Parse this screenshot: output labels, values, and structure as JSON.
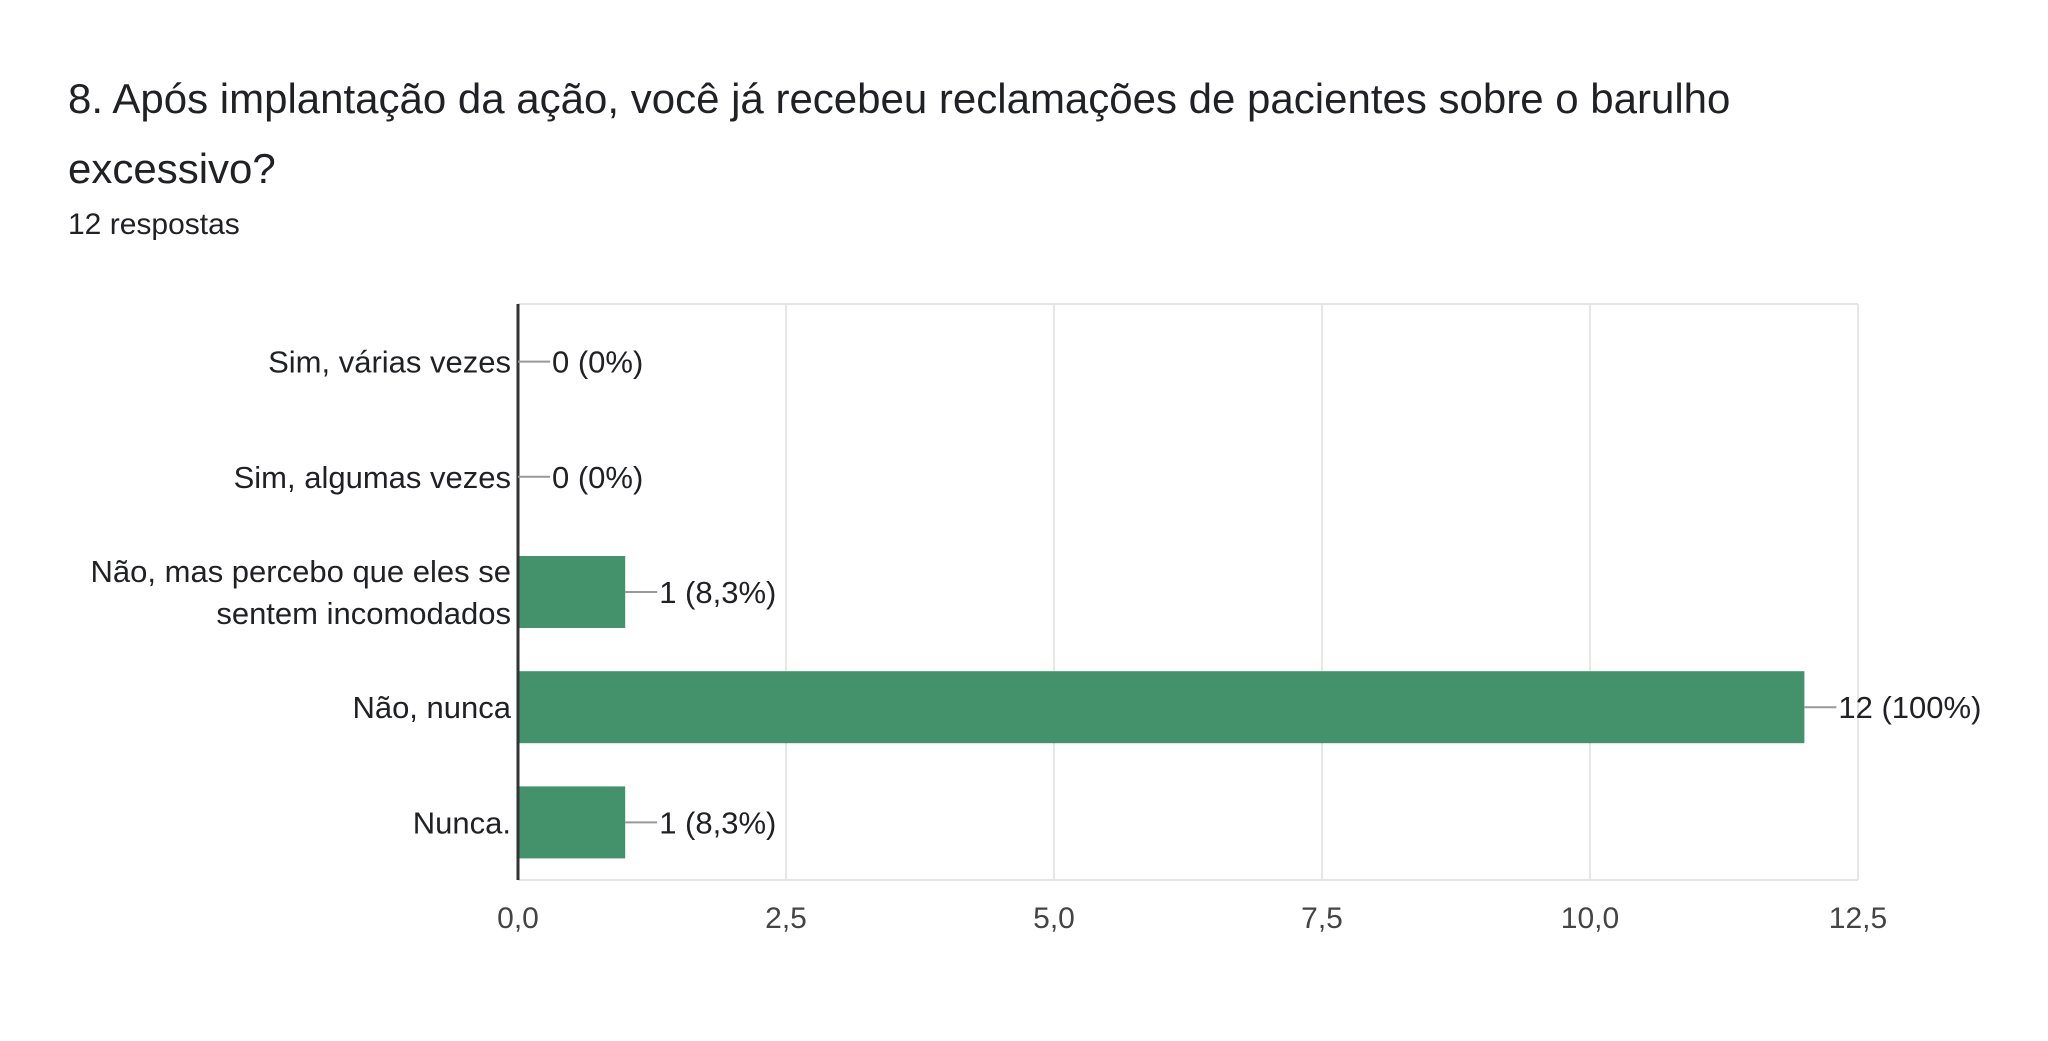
{
  "question": {
    "title": "8. Após implantação da ação, você já recebeu reclamações de pacientes sobre o barulho excessivo?",
    "responses": "12 respostas"
  },
  "colors": {
    "bar": "#43926b",
    "gridline": "#e6e6e6",
    "axis": "#333333",
    "leader": "#999999",
    "text": "#202124",
    "tick_text": "#444444"
  },
  "chart_data": {
    "type": "bar",
    "orientation": "horizontal",
    "categories": [
      "Sim, várias vezes",
      "Sim, algumas vezes",
      "Não, mas percebo que eles se sentem incomodados",
      "Não, nunca",
      "Nunca."
    ],
    "values": [
      0,
      0,
      1,
      12,
      1
    ],
    "value_labels": [
      "0 (0%)",
      "0 (0%)",
      "1 (8,3%)",
      "12 (100%)",
      "1 (8,3%)"
    ],
    "xlim": [
      0,
      12.5
    ],
    "ticks": [
      0,
      2.5,
      5,
      7.5,
      10,
      12.5
    ],
    "tick_labels": [
      "0,0",
      "2,5",
      "5,0",
      "7,5",
      "10,0",
      "12,5"
    ],
    "grid": true,
    "legend": "none"
  }
}
